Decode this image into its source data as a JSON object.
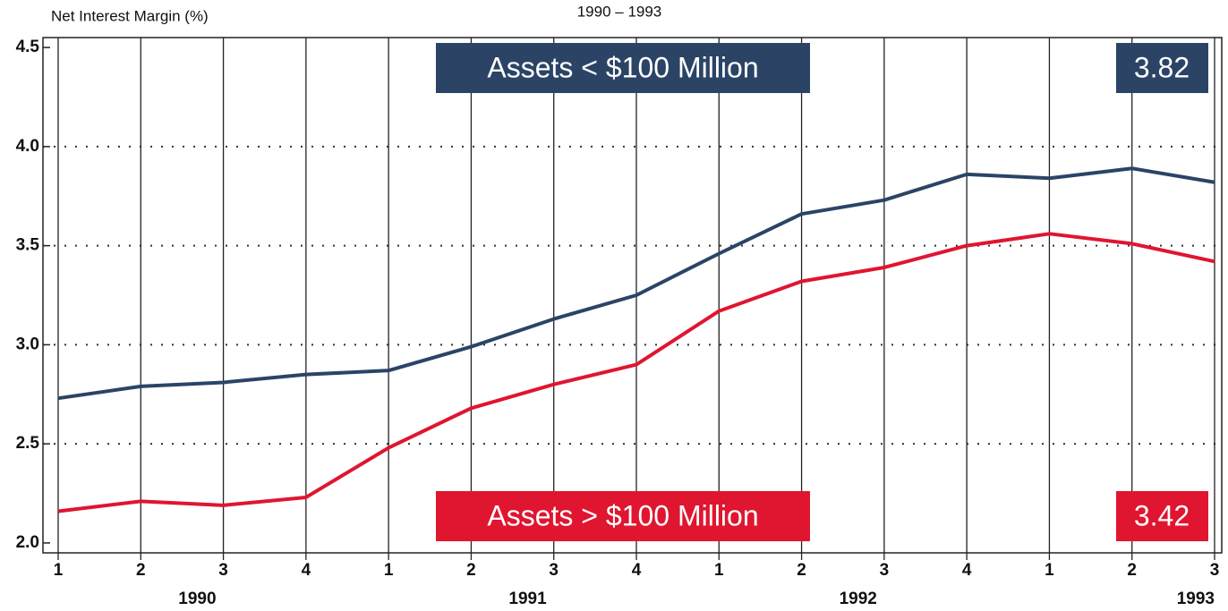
{
  "chart_data": {
    "type": "line",
    "title": "1990 – 1993",
    "y_label": "Net Interest Margin (%)",
    "categories": [
      "1",
      "2",
      "3",
      "4",
      "1",
      "2",
      "3",
      "4",
      "1",
      "2",
      "3",
      "4",
      "1",
      "2",
      "3"
    ],
    "year_groups": [
      "1990",
      "1991",
      "1992",
      "1993"
    ],
    "series": [
      {
        "name": "Assets < $100 Million",
        "color": "#2b4466",
        "values": [
          2.73,
          2.79,
          2.81,
          2.85,
          2.87,
          2.99,
          3.13,
          3.25,
          3.46,
          3.66,
          3.73,
          3.86,
          3.84,
          3.89,
          3.82
        ]
      },
      {
        "name": "Assets > $100 Million",
        "color": "#e01530",
        "values": [
          2.16,
          2.21,
          2.19,
          2.23,
          2.48,
          2.68,
          2.8,
          2.9,
          3.17,
          3.32,
          3.39,
          3.5,
          3.56,
          3.51,
          3.42
        ]
      }
    ],
    "ylim": [
      1.95,
      4.55
    ],
    "yticks": [
      {
        "value": 2,
        "label": "2.0"
      },
      2.5,
      {
        "value": 3,
        "label": "3.0"
      },
      3.5,
      {
        "value": 4,
        "label": "4.0"
      },
      4.5
    ],
    "grid": true
  }
}
